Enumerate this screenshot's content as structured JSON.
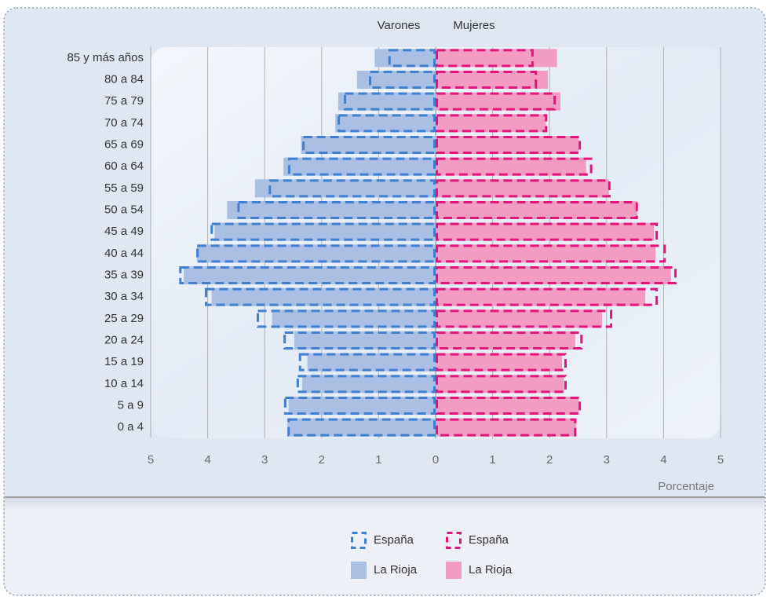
{
  "chart_data": {
    "type": "population-pyramid",
    "groups": [
      "Varones",
      "Mujeres"
    ],
    "x_label": "Porcentaje",
    "categories": [
      "85 y más años",
      "80 a 84",
      "75 a 79",
      "70 a 74",
      "65 a 69",
      "60 a 64",
      "55 a 59",
      "50 a 54",
      "45 a 49",
      "40 a 44",
      "35 a 39",
      "30 a 34",
      "25 a 29",
      "20 a 24",
      "15 a 19",
      "10 a 14",
      "5 a 9",
      "0 a 4"
    ],
    "series": [
      {
        "name": "España",
        "group": 0,
        "style": "dashed",
        "color": "#3d7fd0",
        "values": [
          0.83,
          1.17,
          1.61,
          1.72,
          2.34,
          2.59,
          2.93,
          3.48,
          3.95,
          4.2,
          4.5,
          4.05,
          3.14,
          2.67,
          2.4,
          2.44,
          2.66,
          2.6
        ]
      },
      {
        "name": "España",
        "group": 1,
        "style": "dashed",
        "color": "#e4127d",
        "values": [
          1.72,
          1.78,
          2.11,
          1.96,
          2.55,
          2.75,
          3.07,
          3.55,
          3.9,
          4.04,
          4.23,
          3.9,
          3.1,
          2.58,
          2.3,
          2.3,
          2.55,
          2.47
        ]
      },
      {
        "name": "La Rioja",
        "group": 0,
        "style": "filled",
        "color": "#a9c0e4",
        "values": [
          1.07,
          1.38,
          1.71,
          1.76,
          2.36,
          2.67,
          3.17,
          3.66,
          3.88,
          4.19,
          4.42,
          3.93,
          2.87,
          2.48,
          2.25,
          2.34,
          2.58,
          2.6
        ]
      },
      {
        "name": "La Rioja",
        "group": 1,
        "style": "filled",
        "color": "#f39cc3",
        "values": [
          2.13,
          1.97,
          2.19,
          1.93,
          2.51,
          2.64,
          3.04,
          3.54,
          3.83,
          3.86,
          4.13,
          3.68,
          2.92,
          2.45,
          2.22,
          2.25,
          2.51,
          2.47
        ]
      }
    ],
    "xlim": [
      0,
      5
    ],
    "xticks": [
      0,
      1,
      2,
      3,
      4,
      5
    ],
    "grid": true
  }
}
